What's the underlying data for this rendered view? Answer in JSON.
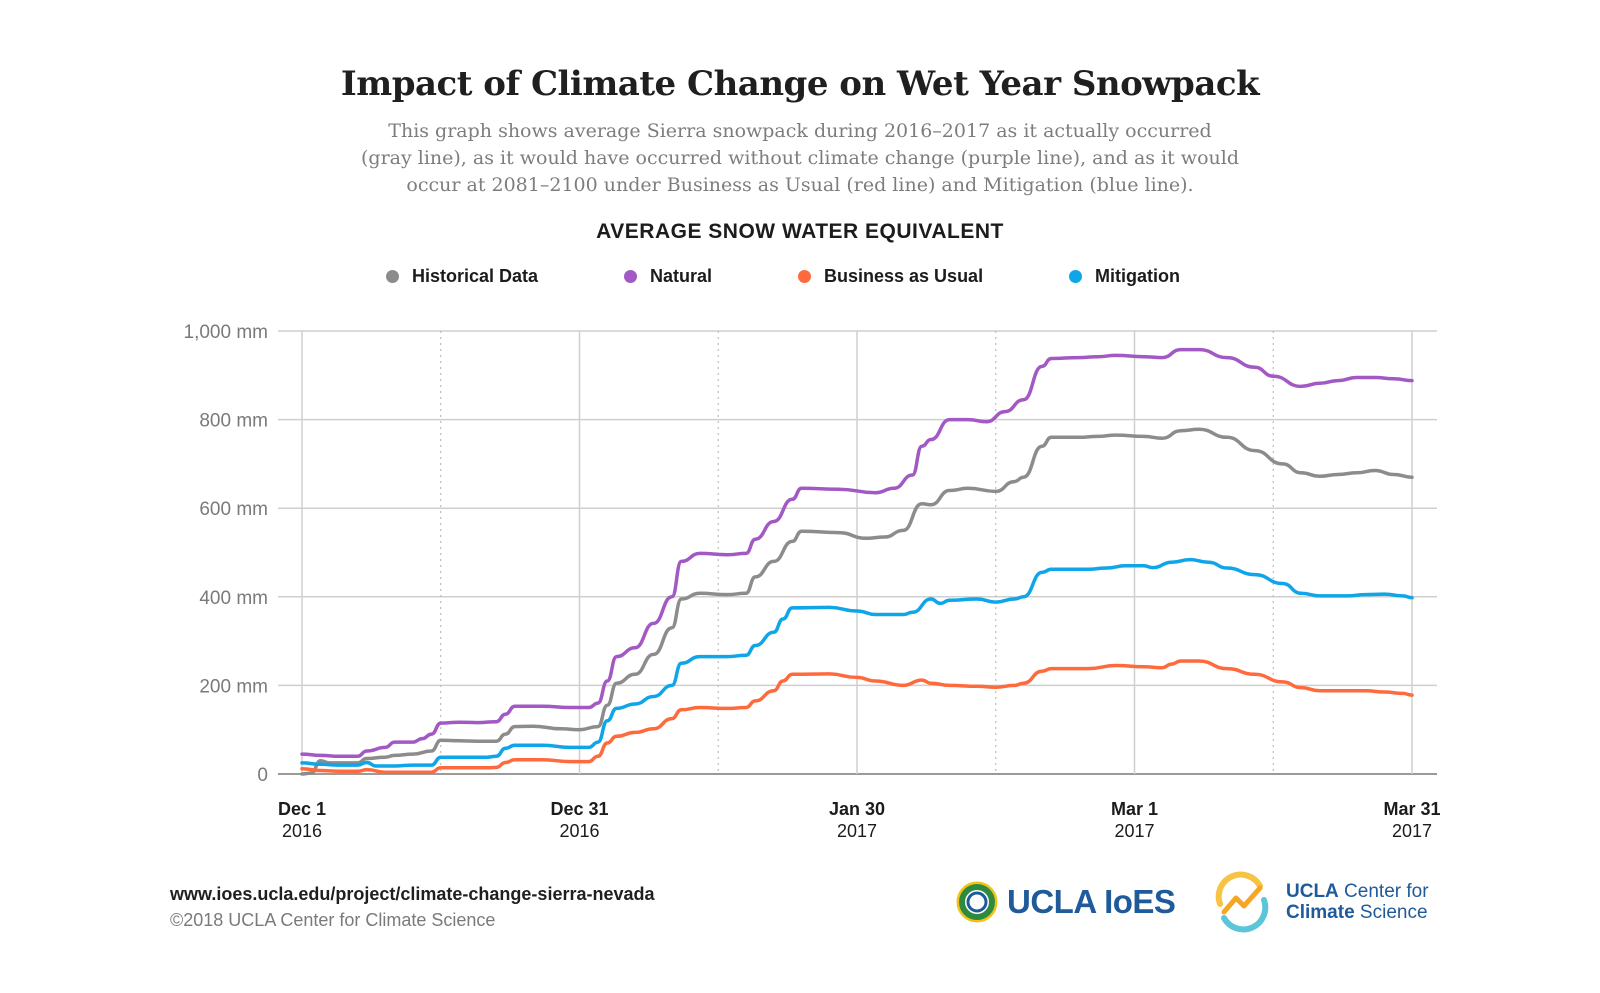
{
  "header": {
    "title": "Impact of Climate Change on Wet Year Snowpack",
    "subtitle_lines": [
      "This graph shows average Sierra snowpack during 2016–2017 as it actually occurred",
      "(gray line), as it would have occurred without climate change (purple line), and as it would",
      "occur at 2081–2100 under Business as Usual (red line) and Mitigation (blue line)."
    ]
  },
  "chart_data": {
    "type": "line",
    "title": "AVERAGE SNOW WATER EQUIVALENT",
    "ylim": [
      0,
      1000
    ],
    "xlim": [
      0,
      120
    ],
    "y_ticks": [
      {
        "value": 0,
        "label": "0"
      },
      {
        "value": 200,
        "label": "200 mm"
      },
      {
        "value": 400,
        "label": "400 mm"
      },
      {
        "value": 600,
        "label": "600 mm"
      },
      {
        "value": 800,
        "label": "800 mm"
      },
      {
        "value": 1000,
        "label": "1,000 mm"
      }
    ],
    "x_ticks": [
      {
        "value": 0,
        "label": "Dec 1",
        "sublabel": "2016",
        "major": true
      },
      {
        "value": 15,
        "label": "",
        "sublabel": "",
        "major": false
      },
      {
        "value": 30,
        "label": "Dec 31",
        "sublabel": "2016",
        "major": true
      },
      {
        "value": 45,
        "label": "",
        "sublabel": "",
        "major": false
      },
      {
        "value": 60,
        "label": "Jan 30",
        "sublabel": "2017",
        "major": true
      },
      {
        "value": 75,
        "label": "",
        "sublabel": "",
        "major": false
      },
      {
        "value": 90,
        "label": "Mar 1",
        "sublabel": "2017",
        "major": true
      },
      {
        "value": 105,
        "label": "",
        "sublabel": "",
        "major": false
      },
      {
        "value": 120,
        "label": "Mar 31",
        "sublabel": "2017",
        "major": true
      }
    ],
    "grid": true,
    "legend_position": "top",
    "series": [
      {
        "name": "Historical Data",
        "color": "#8c8c8c",
        "points": [
          [
            0,
            0
          ],
          [
            1,
            2
          ],
          [
            2,
            30
          ],
          [
            3,
            25
          ],
          [
            4,
            25
          ],
          [
            6,
            25
          ],
          [
            7,
            35
          ],
          [
            9,
            38
          ],
          [
            10,
            42
          ],
          [
            12,
            45
          ],
          [
            14,
            52
          ],
          [
            15,
            76
          ],
          [
            17,
            75
          ],
          [
            19,
            74
          ],
          [
            21,
            74
          ],
          [
            22,
            90
          ],
          [
            23,
            107
          ],
          [
            25,
            108
          ],
          [
            28,
            102
          ],
          [
            30,
            100
          ],
          [
            32,
            107
          ],
          [
            33,
            155
          ],
          [
            34,
            205
          ],
          [
            36,
            225
          ],
          [
            38,
            270
          ],
          [
            40,
            330
          ],
          [
            41,
            395
          ],
          [
            43,
            408
          ],
          [
            46,
            405
          ],
          [
            48,
            408
          ],
          [
            49,
            445
          ],
          [
            51,
            480
          ],
          [
            53,
            525
          ],
          [
            54,
            548
          ],
          [
            58,
            545
          ],
          [
            61,
            532
          ],
          [
            63,
            535
          ],
          [
            65,
            550
          ],
          [
            67,
            610
          ],
          [
            68,
            608
          ],
          [
            70,
            640
          ],
          [
            72,
            645
          ],
          [
            75,
            638
          ],
          [
            77,
            660
          ],
          [
            78,
            670
          ],
          [
            80,
            740
          ],
          [
            81,
            760
          ],
          [
            84,
            760
          ],
          [
            86,
            762
          ],
          [
            88,
            765
          ],
          [
            91,
            762
          ],
          [
            93,
            758
          ],
          [
            95,
            775
          ],
          [
            97,
            778
          ],
          [
            100,
            760
          ],
          [
            103,
            730
          ],
          [
            106,
            700
          ],
          [
            108,
            680
          ],
          [
            110,
            672
          ],
          [
            112,
            676
          ],
          [
            114,
            680
          ],
          [
            116,
            685
          ],
          [
            118,
            676
          ],
          [
            120,
            670
          ]
        ]
      },
      {
        "name": "Natural",
        "color": "#a259c4",
        "points": [
          [
            0,
            45
          ],
          [
            2,
            42
          ],
          [
            4,
            40
          ],
          [
            6,
            40
          ],
          [
            7,
            52
          ],
          [
            9,
            60
          ],
          [
            10,
            72
          ],
          [
            12,
            72
          ],
          [
            13,
            80
          ],
          [
            14,
            90
          ],
          [
            15,
            115
          ],
          [
            17,
            117
          ],
          [
            19,
            116
          ],
          [
            21,
            118
          ],
          [
            22,
            135
          ],
          [
            23,
            153
          ],
          [
            26,
            153
          ],
          [
            29,
            150
          ],
          [
            31,
            150
          ],
          [
            32,
            160
          ],
          [
            33,
            210
          ],
          [
            34,
            265
          ],
          [
            36,
            285
          ],
          [
            38,
            340
          ],
          [
            40,
            400
          ],
          [
            41,
            480
          ],
          [
            43,
            498
          ],
          [
            46,
            495
          ],
          [
            48,
            498
          ],
          [
            49,
            530
          ],
          [
            51,
            570
          ],
          [
            53,
            620
          ],
          [
            54,
            645
          ],
          [
            58,
            643
          ],
          [
            62,
            635
          ],
          [
            64,
            645
          ],
          [
            66,
            675
          ],
          [
            67,
            740
          ],
          [
            68,
            755
          ],
          [
            70,
            800
          ],
          [
            72,
            800
          ],
          [
            74,
            795
          ],
          [
            76,
            818
          ],
          [
            78,
            845
          ],
          [
            80,
            920
          ],
          [
            81,
            938
          ],
          [
            84,
            940
          ],
          [
            86,
            942
          ],
          [
            88,
            945
          ],
          [
            91,
            942
          ],
          [
            93,
            940
          ],
          [
            95,
            958
          ],
          [
            97,
            958
          ],
          [
            100,
            940
          ],
          [
            103,
            918
          ],
          [
            105,
            898
          ],
          [
            108,
            875
          ],
          [
            110,
            882
          ],
          [
            112,
            888
          ],
          [
            114,
            895
          ],
          [
            116,
            895
          ],
          [
            118,
            892
          ],
          [
            120,
            888
          ]
        ]
      },
      {
        "name": "Business as Usual",
        "color": "#ff6a3d",
        "points": [
          [
            0,
            12
          ],
          [
            2,
            8
          ],
          [
            4,
            6
          ],
          [
            6,
            6
          ],
          [
            7,
            10
          ],
          [
            9,
            4
          ],
          [
            12,
            4
          ],
          [
            14,
            4
          ],
          [
            15,
            14
          ],
          [
            17,
            14
          ],
          [
            20,
            14
          ],
          [
            21,
            15
          ],
          [
            22,
            26
          ],
          [
            23,
            32
          ],
          [
            26,
            32
          ],
          [
            29,
            28
          ],
          [
            31,
            28
          ],
          [
            32,
            40
          ],
          [
            33,
            70
          ],
          [
            34,
            85
          ],
          [
            36,
            94
          ],
          [
            38,
            102
          ],
          [
            40,
            125
          ],
          [
            41,
            145
          ],
          [
            43,
            150
          ],
          [
            46,
            148
          ],
          [
            48,
            150
          ],
          [
            49,
            165
          ],
          [
            51,
            188
          ],
          [
            52,
            210
          ],
          [
            53,
            225
          ],
          [
            57,
            226
          ],
          [
            60,
            218
          ],
          [
            62,
            210
          ],
          [
            65,
            200
          ],
          [
            67,
            212
          ],
          [
            68,
            205
          ],
          [
            70,
            200
          ],
          [
            73,
            198
          ],
          [
            75,
            196
          ],
          [
            77,
            200
          ],
          [
            78,
            205
          ],
          [
            80,
            232
          ],
          [
            81,
            238
          ],
          [
            85,
            238
          ],
          [
            88,
            245
          ],
          [
            91,
            242
          ],
          [
            93,
            240
          ],
          [
            94,
            248
          ],
          [
            95,
            255
          ],
          [
            97,
            255
          ],
          [
            100,
            238
          ],
          [
            103,
            225
          ],
          [
            106,
            208
          ],
          [
            108,
            195
          ],
          [
            110,
            188
          ],
          [
            113,
            188
          ],
          [
            115,
            188
          ],
          [
            117,
            185
          ],
          [
            119,
            182
          ],
          [
            120,
            178
          ]
        ]
      },
      {
        "name": "Mitigation",
        "color": "#0ea5e9",
        "points": [
          [
            0,
            25
          ],
          [
            2,
            22
          ],
          [
            4,
            20
          ],
          [
            6,
            20
          ],
          [
            7,
            26
          ],
          [
            8,
            18
          ],
          [
            10,
            18
          ],
          [
            12,
            20
          ],
          [
            14,
            20
          ],
          [
            15,
            38
          ],
          [
            17,
            38
          ],
          [
            20,
            38
          ],
          [
            21,
            40
          ],
          [
            22,
            58
          ],
          [
            23,
            65
          ],
          [
            26,
            65
          ],
          [
            29,
            60
          ],
          [
            31,
            60
          ],
          [
            32,
            72
          ],
          [
            33,
            120
          ],
          [
            34,
            148
          ],
          [
            36,
            158
          ],
          [
            38,
            175
          ],
          [
            40,
            200
          ],
          [
            41,
            250
          ],
          [
            43,
            265
          ],
          [
            46,
            265
          ],
          [
            48,
            268
          ],
          [
            49,
            290
          ],
          [
            51,
            320
          ],
          [
            52,
            350
          ],
          [
            53,
            375
          ],
          [
            57,
            376
          ],
          [
            60,
            368
          ],
          [
            62,
            360
          ],
          [
            65,
            360
          ],
          [
            66,
            365
          ],
          [
            68,
            395
          ],
          [
            69,
            385
          ],
          [
            70,
            392
          ],
          [
            73,
            395
          ],
          [
            75,
            388
          ],
          [
            77,
            395
          ],
          [
            78,
            400
          ],
          [
            80,
            455
          ],
          [
            81,
            462
          ],
          [
            85,
            462
          ],
          [
            87,
            465
          ],
          [
            89,
            470
          ],
          [
            91,
            470
          ],
          [
            92,
            466
          ],
          [
            94,
            478
          ],
          [
            96,
            484
          ],
          [
            98,
            478
          ],
          [
            100,
            465
          ],
          [
            103,
            450
          ],
          [
            106,
            430
          ],
          [
            108,
            408
          ],
          [
            110,
            402
          ],
          [
            113,
            402
          ],
          [
            115,
            405
          ],
          [
            117,
            406
          ],
          [
            119,
            402
          ],
          [
            120,
            398
          ]
        ]
      }
    ]
  },
  "footer": {
    "url": "www.ioes.ucla.edu/project/climate-change-sierra-nevada",
    "copyright": "©2018 UCLA Center for Climate Science",
    "logo_ioes": "UCLA IoES",
    "logo_ccs_line1_bold": "UCLA",
    "logo_ccs_line1_rest": " Center for",
    "logo_ccs_line2_bold": "Climate",
    "logo_ccs_line2_rest": " Science"
  }
}
